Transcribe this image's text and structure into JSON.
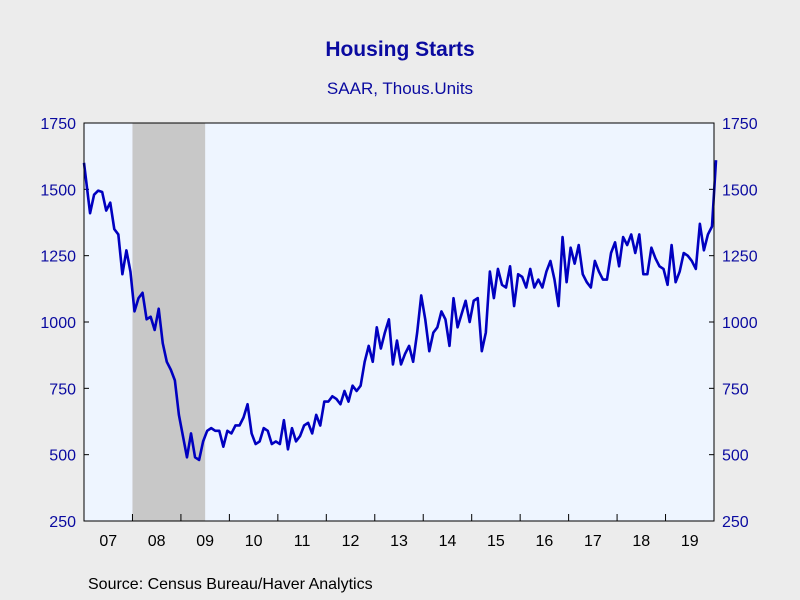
{
  "chart_data": {
    "type": "line",
    "title": "Housing Starts",
    "subtitle": "SAAR, Thous.Units",
    "source": "Source:  Census Bureau/Haver Analytics",
    "ylim": [
      250,
      1750
    ],
    "y_ticks": [
      250,
      500,
      750,
      1000,
      1250,
      1500,
      1750
    ],
    "y_tick_labels": [
      "250",
      "500",
      "750",
      "1000",
      "1250",
      "1500",
      "1750"
    ],
    "x_start": "2007-01",
    "x_end": "2019-12",
    "x_tick_labels": [
      "07",
      "08",
      "09",
      "10",
      "11",
      "12",
      "13",
      "14",
      "15",
      "16",
      "17",
      "18",
      "19"
    ],
    "recession": {
      "start": "2008-01",
      "end": "2009-06"
    },
    "grid": false,
    "colors": {
      "line": "#0000c0",
      "plot_bg": "#eef5ff",
      "recession": "#c8c8c8",
      "text": "#0a0aa0"
    },
    "series": [
      {
        "values": [
          1600,
          1410,
          1480,
          1495,
          1490,
          1420,
          1450,
          1350,
          1330,
          1180,
          1270,
          1190,
          1040,
          1090,
          1110,
          1010,
          1020,
          970,
          1050,
          920,
          850,
          820,
          780,
          650,
          570,
          490,
          580,
          490,
          480,
          550,
          590,
          600,
          590,
          590,
          530,
          590,
          580,
          610,
          610,
          640,
          690,
          580,
          540,
          550,
          600,
          590,
          540,
          550,
          540,
          630,
          520,
          600,
          550,
          570,
          610,
          620,
          580,
          650,
          610,
          700,
          700,
          720,
          710,
          690,
          740,
          700,
          760,
          740,
          760,
          850,
          910,
          850,
          980,
          900,
          960,
          1010,
          840,
          930,
          840,
          880,
          910,
          850,
          960,
          1100,
          1010,
          890,
          960,
          980,
          1040,
          1010,
          910,
          1090,
          980,
          1030,
          1080,
          1000,
          1080,
          1090,
          890,
          960,
          1190,
          1090,
          1200,
          1140,
          1130,
          1210,
          1060,
          1180,
          1170,
          1130,
          1200,
          1130,
          1160,
          1130,
          1190,
          1230,
          1160,
          1060,
          1320,
          1150,
          1280,
          1220,
          1290,
          1180,
          1150,
          1130,
          1230,
          1190,
          1160,
          1160,
          1260,
          1300,
          1210,
          1320,
          1290,
          1330,
          1260,
          1330,
          1180,
          1180,
          1280,
          1240,
          1210,
          1200,
          1140,
          1290,
          1150,
          1190,
          1260,
          1250,
          1230,
          1200,
          1370,
          1270,
          1330,
          1360,
          1610
        ]
      }
    ]
  }
}
